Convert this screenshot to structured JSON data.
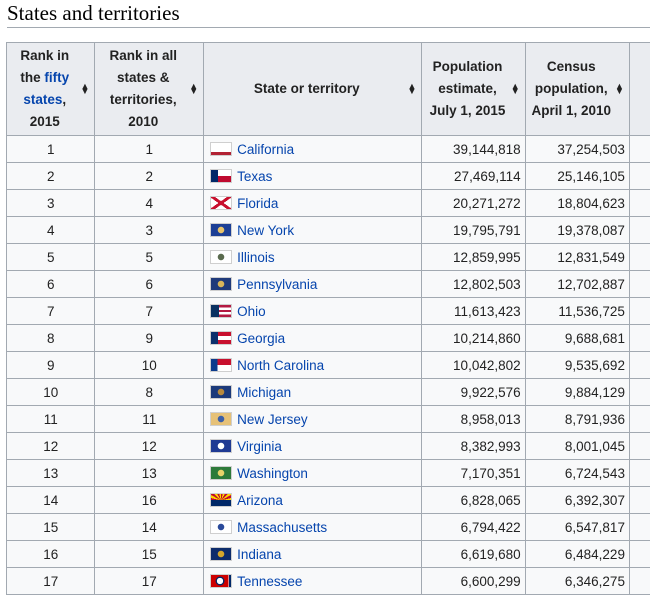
{
  "section_title": "States and territories",
  "headers": {
    "rank_fifty": {
      "pre": "Rank in the ",
      "link": "fifty states",
      "post": ", 2015"
    },
    "rank_all": "Rank in all states & territories, 2010",
    "state": "State or territory",
    "pop_estimate": "Population estimate, July 1, 2015",
    "census": "Census population, April 1, 2010"
  },
  "sort_icon": "sort-updown-icon",
  "rows": [
    {
      "rank": "1",
      "rank_all": "1",
      "state": "California",
      "flag": "california-flag",
      "estimate": "39,144,818",
      "census": "37,254,503"
    },
    {
      "rank": "2",
      "rank_all": "2",
      "state": "Texas",
      "flag": "texas-flag",
      "estimate": "27,469,114",
      "census": "25,146,105"
    },
    {
      "rank": "3",
      "rank_all": "4",
      "state": "Florida",
      "flag": "florida-flag",
      "estimate": "20,271,272",
      "census": "18,804,623"
    },
    {
      "rank": "4",
      "rank_all": "3",
      "state": "New York",
      "flag": "new-york-flag",
      "estimate": "19,795,791",
      "census": "19,378,087"
    },
    {
      "rank": "5",
      "rank_all": "5",
      "state": "Illinois",
      "flag": "illinois-flag",
      "estimate": "12,859,995",
      "census": "12,831,549"
    },
    {
      "rank": "6",
      "rank_all": "6",
      "state": "Pennsylvania",
      "flag": "pennsylvania-flag",
      "estimate": "12,802,503",
      "census": "12,702,887"
    },
    {
      "rank": "7",
      "rank_all": "7",
      "state": "Ohio",
      "flag": "ohio-flag",
      "estimate": "11,613,423",
      "census": "11,536,725"
    },
    {
      "rank": "8",
      "rank_all": "9",
      "state": "Georgia",
      "flag": "georgia-flag",
      "estimate": "10,214,860",
      "census": "9,688,681"
    },
    {
      "rank": "9",
      "rank_all": "10",
      "state": "North Carolina",
      "flag": "north-carolina-flag",
      "estimate": "10,042,802",
      "census": "9,535,692"
    },
    {
      "rank": "10",
      "rank_all": "8",
      "state": "Michigan",
      "flag": "michigan-flag",
      "estimate": "9,922,576",
      "census": "9,884,129"
    },
    {
      "rank": "11",
      "rank_all": "11",
      "state": "New Jersey",
      "flag": "new-jersey-flag",
      "estimate": "8,958,013",
      "census": "8,791,936"
    },
    {
      "rank": "12",
      "rank_all": "12",
      "state": "Virginia",
      "flag": "virginia-flag",
      "estimate": "8,382,993",
      "census": "8,001,045"
    },
    {
      "rank": "13",
      "rank_all": "13",
      "state": "Washington",
      "flag": "washington-flag",
      "estimate": "7,170,351",
      "census": "6,724,543"
    },
    {
      "rank": "14",
      "rank_all": "16",
      "state": "Arizona",
      "flag": "arizona-flag",
      "estimate": "6,828,065",
      "census": "6,392,307"
    },
    {
      "rank": "15",
      "rank_all": "14",
      "state": "Massachusetts",
      "flag": "massachusetts-flag",
      "estimate": "6,794,422",
      "census": "6,547,817"
    },
    {
      "rank": "16",
      "rank_all": "15",
      "state": "Indiana",
      "flag": "indiana-flag",
      "estimate": "6,619,680",
      "census": "6,484,229"
    },
    {
      "rank": "17",
      "rank_all": "17",
      "state": "Tennessee",
      "flag": "tennessee-flag",
      "estimate": "6,600,299",
      "census": "6,346,275"
    }
  ],
  "colors": {
    "link": "#0645ad",
    "header_bg": "#eaecf0",
    "cell_bg": "#f8f9fa",
    "border": "#a2a9b1"
  }
}
